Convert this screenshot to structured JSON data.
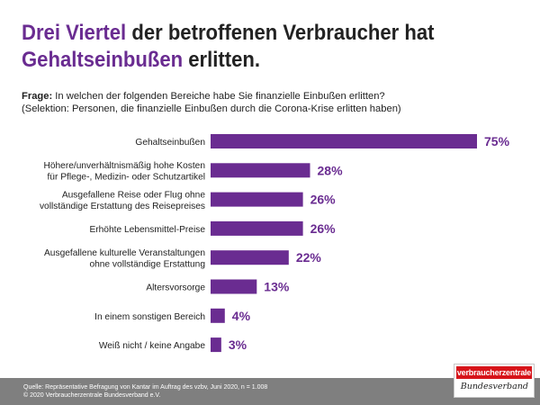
{
  "title": {
    "part1_accent": "Drei Viertel",
    "part2": " der betroffenen Verbraucher hat",
    "part3_accent": "Gehaltseinbußen",
    "part4": " erlitten."
  },
  "question": {
    "label": "Frage:",
    "text": " In welchen der folgenden Bereiche habe Sie finanzielle Einbußen erlitten?",
    "selection": "(Selektion: Personen, die finanzielle Einbußen durch die Corona-Krise erlitten haben)"
  },
  "colors": {
    "accent": "#6a2c91",
    "bar": "#6a2c91",
    "footer": "#7f7f7f",
    "logo_red": "#d7141a"
  },
  "chart_data": {
    "type": "bar",
    "orientation": "horizontal",
    "title": "Drei Viertel der betroffenen Verbraucher hat Gehaltseinbußen erlitten.",
    "xlim": [
      0,
      75
    ],
    "unit": "%",
    "categories": [
      [
        "Gehaltseinbußen"
      ],
      [
        "Höhere/unverhältnismäßig hohe Kosten",
        "für Pflege-, Medizin- oder Schutzartikel"
      ],
      [
        "Ausgefallene Reise oder Flug ohne",
        "vollständige Erstattung des Reisepreises"
      ],
      [
        "Erhöhte Lebensmittel-Preise"
      ],
      [
        "Ausgefallene kulturelle Veranstaltungen",
        "ohne vollständige Erstattung"
      ],
      [
        "Altersvorsorge"
      ],
      [
        "In einem sonstigen Bereich"
      ],
      [
        "Weiß nicht / keine Angabe"
      ]
    ],
    "values": [
      75,
      28,
      26,
      26,
      22,
      13,
      4,
      3
    ],
    "value_labels": [
      "75%",
      "28%",
      "26%",
      "26%",
      "22%",
      "13%",
      "4%",
      "3%"
    ]
  },
  "footer": {
    "source_line1": "Quelle: Repräsentative Befragung von Kantar im Auftrag des vzbv,  Juni 2020, n = 1.008",
    "source_line2": "© 2020 Verbraucherzentrale Bundesverband e.V."
  },
  "logo": {
    "top": "verbraucherzentrale",
    "bottom": "Bundesverband"
  }
}
